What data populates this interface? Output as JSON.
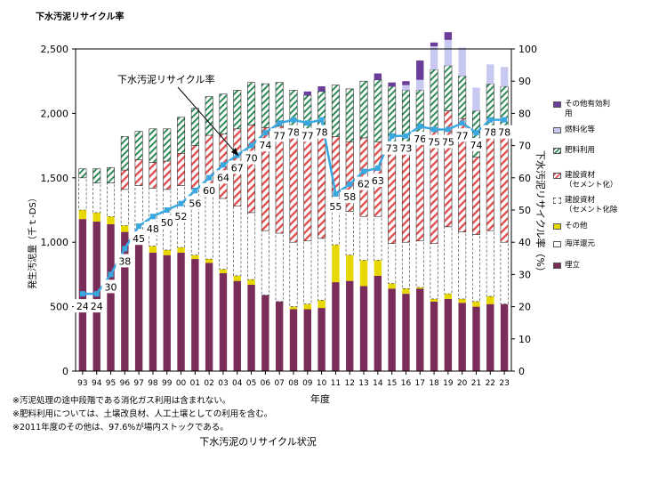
{
  "chart_data": {
    "type": "bar",
    "title": "下水汚泥リサイクル率",
    "caption": "下水汚泥のリサイクル状況",
    "xlabel": "年度",
    "ylabel_left": "発生汚泥量（千ｔ-DS）",
    "ylabel_right": "下水汚泥リサイクル率（%）",
    "ylim_left": [
      0,
      2500
    ],
    "yticks_left": [
      "0",
      "500",
      "1,000",
      "1,500",
      "2,000",
      "2,500"
    ],
    "ylim_right": [
      0,
      100
    ],
    "yticks_right": [
      "0",
      "10",
      "20",
      "30",
      "40",
      "50",
      "60",
      "70",
      "80",
      "90",
      "100"
    ],
    "categories": [
      "93",
      "94",
      "95",
      "96",
      "97",
      "98",
      "99",
      "00",
      "01",
      "02",
      "03",
      "04",
      "05",
      "06",
      "07",
      "08",
      "09",
      "10",
      "11",
      "12",
      "13",
      "14",
      "15",
      "16",
      "17",
      "18",
      "19",
      "20",
      "21",
      "22",
      "23"
    ],
    "series": [
      {
        "name": "埋立",
        "color": "#7b2d5a",
        "pattern": "solid",
        "values": [
          1180,
          1160,
          1140,
          1080,
          980,
          920,
          900,
          920,
          870,
          840,
          760,
          700,
          670,
          590,
          540,
          480,
          480,
          490,
          690,
          700,
          660,
          740,
          640,
          600,
          640,
          540,
          560,
          530,
          500,
          520,
          520
        ]
      },
      {
        "name": "その他",
        "color": "#e6d800",
        "pattern": "solid",
        "values": [
          70,
          70,
          60,
          50,
          50,
          50,
          40,
          40,
          30,
          30,
          30,
          40,
          40,
          0,
          0,
          20,
          40,
          60,
          290,
          200,
          200,
          120,
          40,
          40,
          10,
          20,
          40,
          30,
          40,
          60,
          0
        ]
      },
      {
        "name": "海洋還元",
        "color": "#ffffff",
        "pattern": "white",
        "values": [
          0,
          0,
          0,
          0,
          0,
          0,
          0,
          0,
          0,
          0,
          0,
          0,
          0,
          0,
          0,
          0,
          0,
          0,
          0,
          0,
          0,
          0,
          0,
          0,
          0,
          0,
          0,
          0,
          0,
          0,
          0
        ]
      },
      {
        "name": "建設資材（セメント化除く）",
        "color": "#ffffff",
        "pattern": "dashed",
        "values": [
          250,
          230,
          260,
          280,
          410,
          450,
          470,
          480,
          520,
          560,
          550,
          540,
          520,
          500,
          530,
          500,
          490,
          480,
          380,
          340,
          340,
          340,
          310,
          360,
          360,
          430,
          520,
          520,
          520,
          510,
          480
        ]
      },
      {
        "name": "建設資材（セメント化）",
        "color": "#e05050",
        "pattern": "hatch-red",
        "values": [
          0,
          0,
          0,
          150,
          200,
          200,
          220,
          250,
          330,
          400,
          500,
          600,
          680,
          800,
          830,
          850,
          820,
          830,
          460,
          540,
          610,
          580,
          780,
          780,
          790,
          900,
          900,
          880,
          600,
          800,
          860
        ]
      },
      {
        "name": "肥料利用",
        "color": "#2e8b57",
        "pattern": "hatch-green",
        "values": [
          70,
          110,
          120,
          260,
          220,
          260,
          250,
          280,
          290,
          300,
          310,
          300,
          330,
          340,
          340,
          330,
          310,
          310,
          400,
          410,
          440,
          480,
          440,
          400,
          380,
          450,
          350,
          330,
          360,
          340,
          350
        ]
      },
      {
        "name": "燃料化等",
        "color": "#c8c8f0",
        "pattern": "solid",
        "values": [
          0,
          0,
          0,
          0,
          0,
          0,
          0,
          0,
          0,
          0,
          0,
          0,
          0,
          0,
          0,
          0,
          0,
          0,
          0,
          0,
          0,
          0,
          0,
          40,
          80,
          180,
          200,
          220,
          180,
          150,
          150
        ]
      },
      {
        "name": "その他有効利用",
        "color": "#6a3d9a",
        "pattern": "solid",
        "values": [
          0,
          0,
          0,
          0,
          0,
          0,
          0,
          0,
          0,
          0,
          0,
          0,
          0,
          0,
          0,
          0,
          30,
          40,
          0,
          0,
          0,
          50,
          30,
          30,
          150,
          30,
          60,
          0,
          0,
          0,
          0
        ]
      }
    ],
    "line": {
      "name": "下水汚泥リサイクル率",
      "color": "#3aa8e0",
      "values": [
        24,
        24,
        30,
        38,
        45,
        48,
        50,
        52,
        56,
        60,
        64,
        67,
        70,
        74,
        77,
        78,
        77,
        78,
        55,
        58,
        62,
        63,
        73,
        73,
        76,
        75,
        75,
        77,
        74,
        78,
        78
      ],
      "labels": [
        "24",
        "24",
        "30",
        "38",
        "45",
        "48",
        "50",
        "52",
        "56",
        "60",
        "64",
        "67",
        "70",
        "74",
        "77",
        "78",
        "77",
        "78",
        "55",
        "58",
        "62",
        "63",
        "73",
        "73",
        "76",
        "75",
        "75",
        "77",
        "74",
        "78",
        "78"
      ]
    },
    "legend_position": "right",
    "legend": [
      {
        "name": "その他有効利用",
        "line1": "その他有効利",
        "line2": "用",
        "pattern": "solid",
        "color": "#6a3d9a"
      },
      {
        "name": "燃料化等",
        "line1": "燃料化等",
        "line2": "",
        "pattern": "solid",
        "color": "#c8c8f0"
      },
      {
        "name": "肥料利用",
        "line1": "肥料利用",
        "line2": "",
        "pattern": "hatch-green",
        "color": "#2e8b57"
      },
      {
        "name": "建設資材（セメント化）",
        "line1": "建設資材",
        "line2": "（セメント化）",
        "pattern": "hatch-red",
        "color": "#e05050"
      },
      {
        "name": "建設資材（セメント化除く）",
        "line1": "建設資材",
        "line2": "（セメント化除",
        "pattern": "dashed",
        "color": "#ffffff"
      },
      {
        "name": "その他",
        "line1": "その他",
        "line2": "",
        "pattern": "solid",
        "color": "#e6d800"
      },
      {
        "name": "海洋還元",
        "line1": "海洋還元",
        "line2": "",
        "pattern": "white",
        "color": "#ffffff"
      },
      {
        "name": "埋立",
        "line1": "埋立",
        "line2": "",
        "pattern": "solid",
        "color": "#7b2d5a"
      }
    ]
  },
  "notes": [
    "※汚泥処理の途中段階である消化ガス利用は含まれない。",
    "※肥料利用については、土壌改良材、人工土壌としての利用を含む。",
    "※2011年度のその他は、97.6%が場内ストックである。"
  ]
}
